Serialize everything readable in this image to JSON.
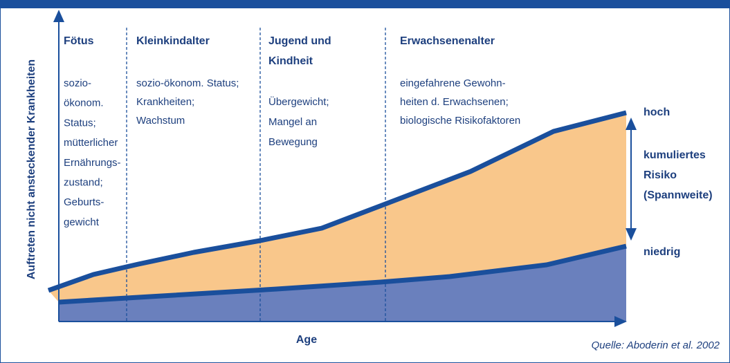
{
  "y_axis_label": "Auftreten nicht ansteckender Krankheiten",
  "x_axis_label": "Age",
  "source": "Quelle: Aboderin et al. 2002",
  "stages": [
    {
      "heading": [
        "Fötus"
      ],
      "lines": [
        "sozio-",
        "ökonom.",
        "Status;",
        "mütterlicher",
        "Ernährungs-",
        "zustand;",
        "Geburts-",
        "gewicht"
      ]
    },
    {
      "heading": [
        "Kleinkindalter"
      ],
      "lines": [
        "sozio-ökonom. Status;",
        "Krankheiten;",
        "Wachstum"
      ]
    },
    {
      "heading": [
        "Jugend und",
        "Kindheit"
      ],
      "lines": [
        "Übergewicht;",
        "Mangel an",
        "Bewegung"
      ]
    },
    {
      "heading": [
        "Erwachsenenalter"
      ],
      "lines": [
        "eingefahrene Gewohn-",
        "heiten d. Erwachsenen;",
        "biologische Risikofaktoren"
      ]
    }
  ],
  "risk": {
    "high": "hoch",
    "label": [
      "kumuliertes",
      "Risiko",
      "(Spannweite)"
    ],
    "low": "niedrig"
  }
}
